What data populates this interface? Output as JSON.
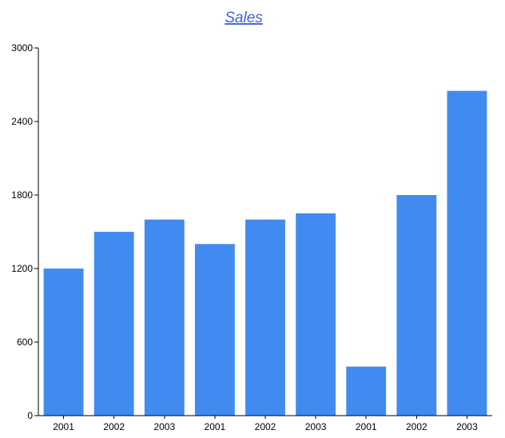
{
  "chart_data": {
    "type": "bar",
    "title": "Sales",
    "categories": [
      "2001",
      "2002",
      "2003",
      "2001",
      "2002",
      "2003",
      "2001",
      "2002",
      "2003"
    ],
    "series": [
      {
        "values": [
          1200,
          1500,
          1600,
          1400,
          1600,
          1650,
          400,
          1800,
          2650
        ]
      }
    ],
    "ylim": [
      0,
      3000
    ],
    "yticks": [
      0,
      600,
      1200,
      1800,
      2400,
      3000
    ],
    "xlabel": "",
    "ylabel": "",
    "grid": false,
    "legend": "none",
    "colors": {
      "bar": "#418bf0",
      "title": "#3f5fe6",
      "axis": "#000000"
    }
  }
}
